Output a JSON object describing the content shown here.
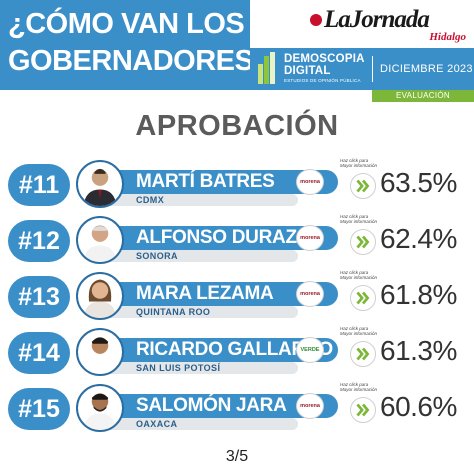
{
  "header": {
    "headline_line1": "¿CÓMO VAN LOS",
    "headline_line2": "GOBERNADORES?",
    "logo_name": "LaJornada",
    "logo_sub": "Hidalgo",
    "pollster_line1": "DEMOSCOPIA",
    "pollster_line2": "DIGITAL",
    "pollster_tagline": "ESTUDIOS DE OPINIÓN PÚBLICA",
    "date": "DICIEMBRE 2023",
    "evaluation": "EVALUACIÓN"
  },
  "section_title": "APROBACIÓN",
  "click_note_line1": "Haz click para",
  "click_note_line2": "Mayor información",
  "rows": [
    {
      "rank": "#11",
      "name": "MARTÍ BATRES",
      "state": "CDMX",
      "party": "morena",
      "approval": "63.5%"
    },
    {
      "rank": "#12",
      "name": "ALFONSO DURAZO",
      "state": "SONORA",
      "party": "morena",
      "approval": "62.4%"
    },
    {
      "rank": "#13",
      "name": "MARA LEZAMA",
      "state": "QUINTANA ROO",
      "party": "morena",
      "approval": "61.8%"
    },
    {
      "rank": "#14",
      "name": "RICARDO GALLARDO",
      "state": "SAN LUIS POTOSÍ",
      "party": "VERDE",
      "approval": "61.3%"
    },
    {
      "rank": "#15",
      "name": "SALOMÓN JARA",
      "state": "OAXACA",
      "party": "morena",
      "approval": "60.6%"
    }
  ],
  "pager": "3/5",
  "colors": {
    "primary_blue": "#3a8fc9",
    "green_accent": "#7db73a",
    "morena_red": "#9a1b2a",
    "verde_green": "#2f8a2f"
  }
}
